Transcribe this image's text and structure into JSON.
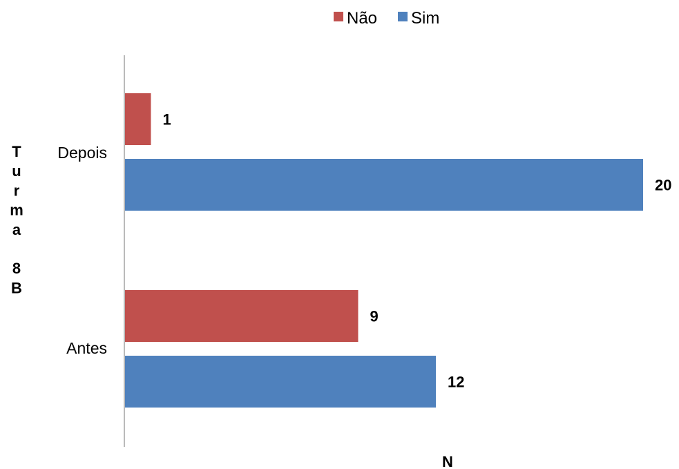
{
  "chart_data": {
    "type": "bar",
    "orientation": "horizontal",
    "categories": [
      "Depois",
      "Antes"
    ],
    "series": [
      {
        "name": "Não",
        "color": "#c0504d",
        "values": [
          1,
          9
        ]
      },
      {
        "name": "Sim",
        "color": "#4f81bd",
        "values": [
          20,
          12
        ]
      }
    ],
    "data_labels": true,
    "xlabel": "N",
    "ylabel": "Turma 8B",
    "xlim": [
      0,
      20
    ],
    "grid": false,
    "legend": {
      "position": "top",
      "entries": [
        "Não",
        "Sim"
      ]
    }
  }
}
